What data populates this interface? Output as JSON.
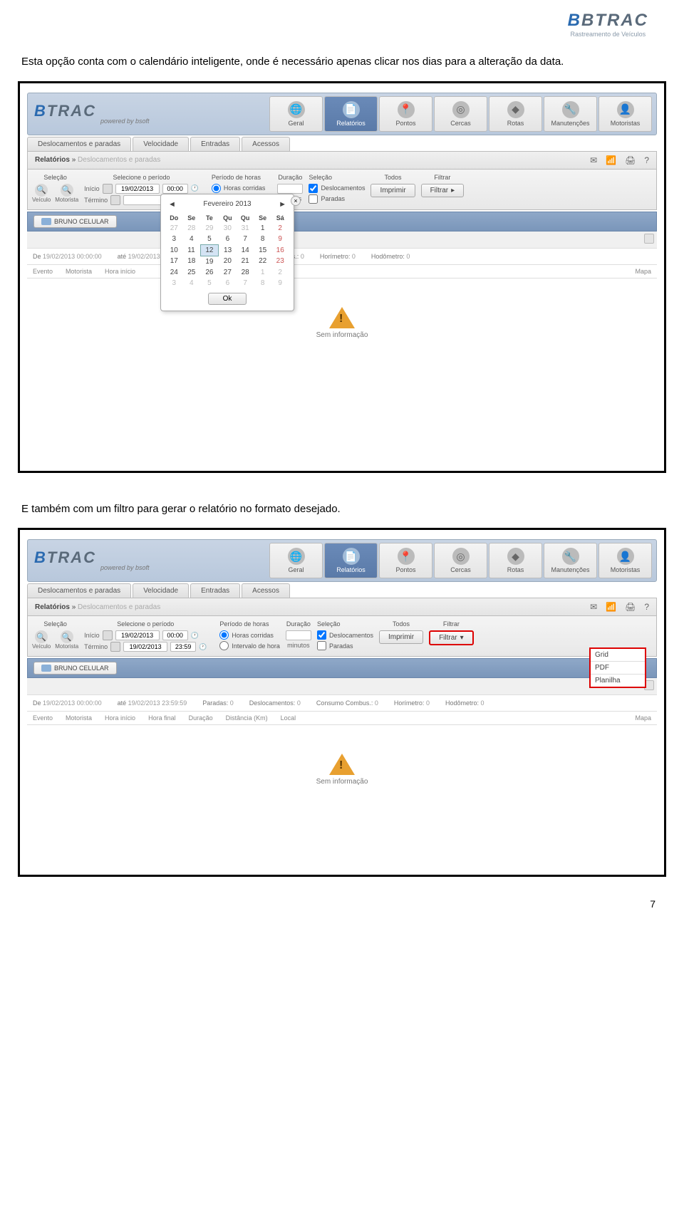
{
  "header": {
    "brand": "BTRAC",
    "tagline": "Rastreamento de Veículos"
  },
  "text": {
    "para1": "Esta opção conta com o calendário inteligente, onde é necessário apenas clicar nos dias para a alteração da data.",
    "para2": "E também com um filtro para gerar o relatório no formato desejado."
  },
  "app": {
    "brand": "BTRAC",
    "powered": "powered by bsoft",
    "navItems": [
      {
        "label": "Geral",
        "icon": "🌐"
      },
      {
        "label": "Relatórios",
        "icon": "📄",
        "active": true
      },
      {
        "label": "Pontos",
        "icon": "📍"
      },
      {
        "label": "Cercas",
        "icon": "◎"
      },
      {
        "label": "Rotas",
        "icon": "◆"
      },
      {
        "label": "Manutenções",
        "icon": "🔧"
      },
      {
        "label": "Motoristas",
        "icon": "👤"
      }
    ],
    "subTabs": [
      "Deslocamentos e paradas",
      "Velocidade",
      "Entradas",
      "Acessos"
    ],
    "breadcrumb": {
      "main": "Relatórios",
      "sep": "»",
      "current": "Deslocamentos e paradas"
    },
    "bcIcons": [
      "✉",
      "↑↓",
      "🖨",
      "?"
    ]
  },
  "filters": {
    "selecao": {
      "header": "Seleção",
      "veiculo": "Veículo",
      "motorista": "Motorista"
    },
    "periodo": {
      "header": "Selecione o período",
      "inicio": "Início",
      "termino": "Término",
      "dateStart": "19/02/2013",
      "timeStart": "00:00",
      "dateEnd": "19/02/2013",
      "timeEnd": "23:59"
    },
    "periodoHoras": {
      "header": "Período de horas",
      "corridas": "Horas corridas",
      "intervalo": "Intervalo de hora"
    },
    "duracao": {
      "header": "Duração",
      "minutos": "minutos"
    },
    "selecao2": {
      "header": "Seleção",
      "desloc": "Deslocamentos",
      "paradas": "Paradas"
    },
    "todos": {
      "header": "Todos",
      "btn": "Imprimir"
    },
    "filtrar": {
      "header": "Filtrar",
      "btn": "Filtrar",
      "options": [
        "Grid",
        "PDF",
        "Planilha"
      ]
    }
  },
  "calendar": {
    "month": "Fevereiro 2013",
    "days": [
      "Do",
      "Se",
      "Te",
      "Qu",
      "Qu",
      "Se",
      "Sá"
    ],
    "rows": [
      [
        27,
        28,
        29,
        30,
        31,
        1,
        2
      ],
      [
        3,
        4,
        5,
        6,
        7,
        8,
        9
      ],
      [
        10,
        11,
        12,
        13,
        14,
        15,
        16
      ],
      [
        17,
        18,
        19,
        20,
        21,
        22,
        23
      ],
      [
        24,
        25,
        26,
        27,
        28,
        1,
        2
      ],
      [
        3,
        4,
        5,
        6,
        7,
        8,
        9
      ]
    ],
    "offCells": [
      [
        0,
        0
      ],
      [
        0,
        1
      ],
      [
        0,
        2
      ],
      [
        0,
        3
      ],
      [
        0,
        4
      ],
      [
        4,
        5
      ],
      [
        4,
        6
      ],
      [
        5,
        0
      ],
      [
        5,
        1
      ],
      [
        5,
        2
      ],
      [
        5,
        3
      ],
      [
        5,
        4
      ],
      [
        5,
        5
      ],
      [
        5,
        6
      ]
    ],
    "selected": [
      2,
      2
    ],
    "ok": "Ok"
  },
  "vehicle": "BRUNO CELULAR",
  "stats": {
    "de": "De",
    "deVal": "19/02/2013 00:00:00",
    "ate": "até",
    "ateVal": "19/02/2013 23:59:59",
    "paradas": "Paradas:",
    "paradasVal": "0",
    "desloc": "Deslocamentos:",
    "deslocVal": "0",
    "combus": "Consumo Combus.:",
    "combusVal": "0",
    "horim": "Horímetro:",
    "horimVal": "0",
    "hodo": "Hodômetro:",
    "hodoVal": "0"
  },
  "table": {
    "cols": [
      "Evento",
      "Motorista",
      "Hora início",
      "Hora final",
      "Duração",
      "Distância (Km)",
      "Local",
      "Mapa"
    ]
  },
  "empty": "Sem informação",
  "pageNum": "7"
}
